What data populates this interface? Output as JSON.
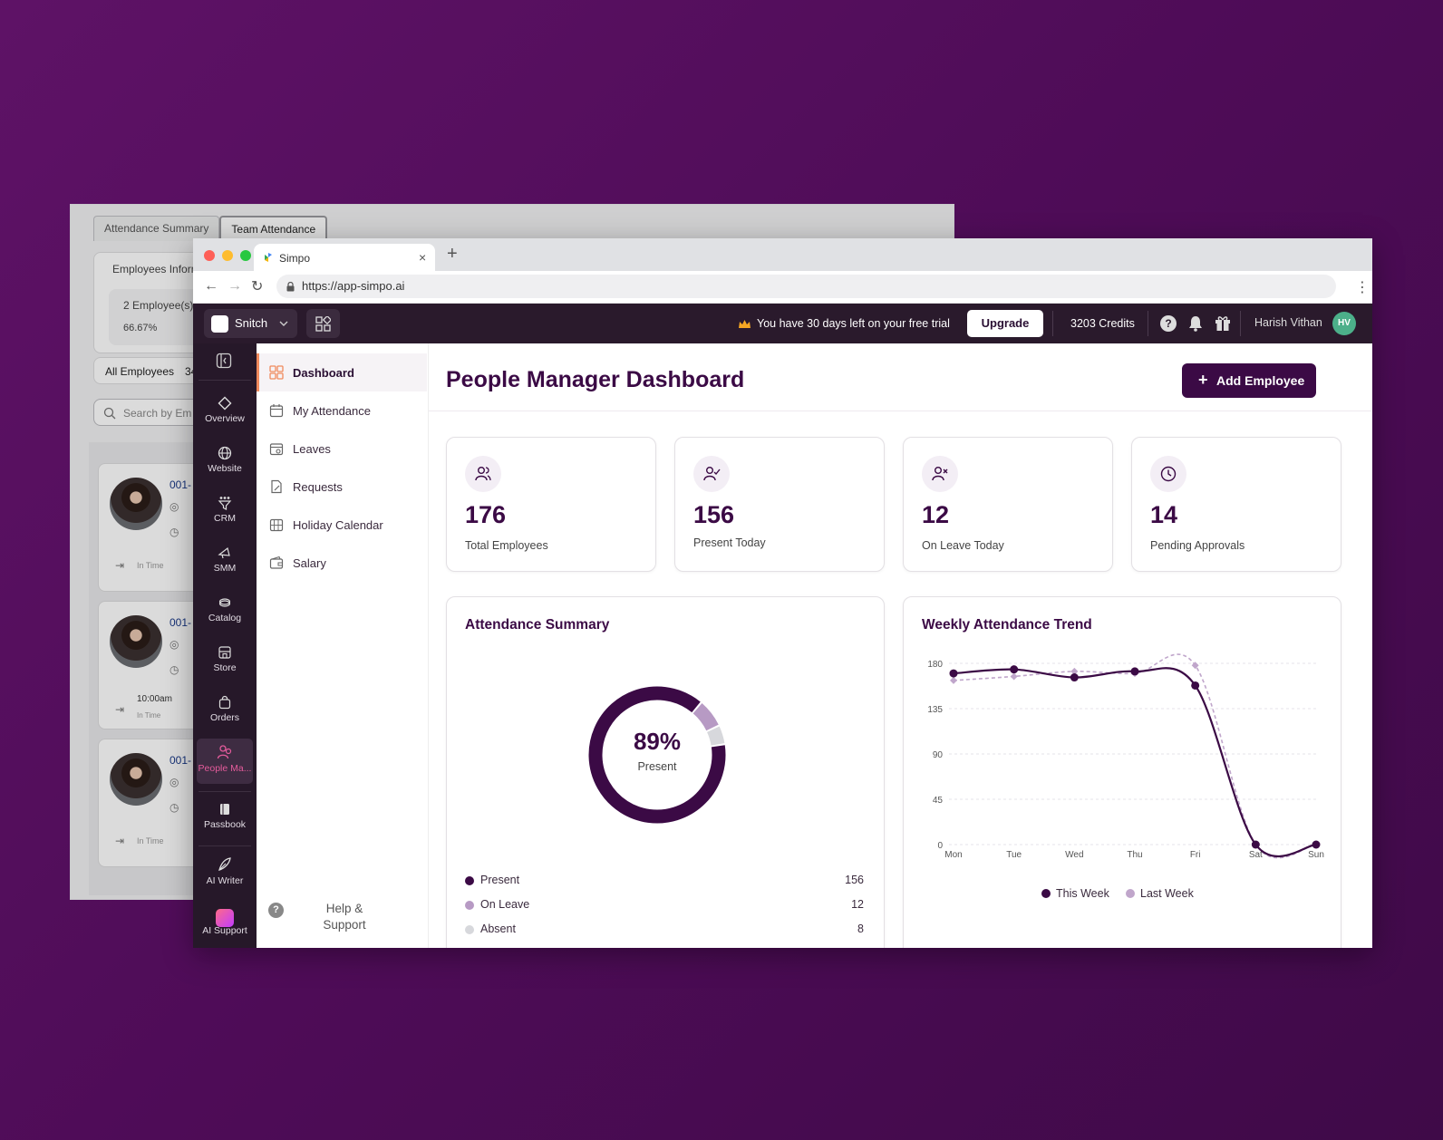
{
  "background_window": {
    "tabs": [
      "Attendance Summary",
      "Team Attendance"
    ],
    "employees_info_label": "Employees Inform",
    "employees_count": "2 Employee(s)",
    "percent": "66.67%",
    "all_employees": "All Employees",
    "all_employees_count": "34",
    "search_placeholder": "Search by Em",
    "employee_cards": [
      {
        "id": "001-",
        "time_label": "In Time",
        "time_value": ""
      },
      {
        "id": "001-",
        "time_label": "In Time",
        "time_value": "10:00am"
      },
      {
        "id": "001-",
        "time_label": "In Time",
        "time_value": ""
      }
    ]
  },
  "browser": {
    "tab_title": "Simpo",
    "url": "https://app-simpo.ai"
  },
  "topbar": {
    "business": "Snitch",
    "trial_text": "You have 30 days left on your free trial",
    "upgrade": "Upgrade",
    "credits": "3203 Credits",
    "user_name": "Harish Vithan",
    "user_initials": "HV"
  },
  "rail": {
    "items": [
      "Overview",
      "Website",
      "CRM",
      "SMM",
      "Catalog",
      "Store",
      "Orders",
      "People Ma...",
      "Passbook",
      "AI Writer",
      "AI Support"
    ]
  },
  "submenu": {
    "items": [
      "Dashboard",
      "My Attendance",
      "Leaves",
      "Requests",
      "Holiday Calendar",
      "Salary"
    ],
    "help": "Help & Support"
  },
  "main": {
    "title": "People Manager Dashboard",
    "add_button": "Add Employee",
    "stats": [
      {
        "value": "176",
        "label": "Total Employees",
        "icon": "users-icon"
      },
      {
        "value": "156",
        "label": "Present Today",
        "icon": "user-check-icon"
      },
      {
        "value": "12",
        "label": "On Leave Today",
        "icon": "user-x-icon"
      },
      {
        "value": "14",
        "label": "Pending Approvals",
        "icon": "clock-icon"
      }
    ],
    "attendance_summary": {
      "title": "Attendance Summary",
      "center_value": "89%",
      "center_label": "Present"
    },
    "trend": {
      "title": "Weekly Attendance Trend"
    }
  },
  "colors": {
    "brand": "#3b0a45",
    "accent": "#f08a5d",
    "present": "#3b0a45",
    "on_leave": "#b79ac4",
    "absent": "#d7d8dc",
    "last_week": "#c0a6cb"
  },
  "chart_data": [
    {
      "type": "pie",
      "title": "Attendance Summary",
      "categories": [
        "Present",
        "On Leave",
        "Absent"
      ],
      "values": [
        156,
        12,
        8
      ]
    },
    {
      "type": "line",
      "title": "Weekly Attendance Trend",
      "categories": [
        "Mon",
        "Tue",
        "Wed",
        "Thu",
        "Fri",
        "Sat",
        "Sun"
      ],
      "ylim": [
        0,
        180
      ],
      "yticks": [
        0,
        45,
        90,
        135,
        180
      ],
      "grid": true,
      "legend": "bottom",
      "series": [
        {
          "name": "This Week",
          "values": [
            170,
            174,
            166,
            172,
            158,
            0,
            0
          ]
        },
        {
          "name": "Last Week",
          "values": [
            163,
            167,
            172,
            170,
            178,
            0,
            0
          ]
        }
      ]
    }
  ]
}
